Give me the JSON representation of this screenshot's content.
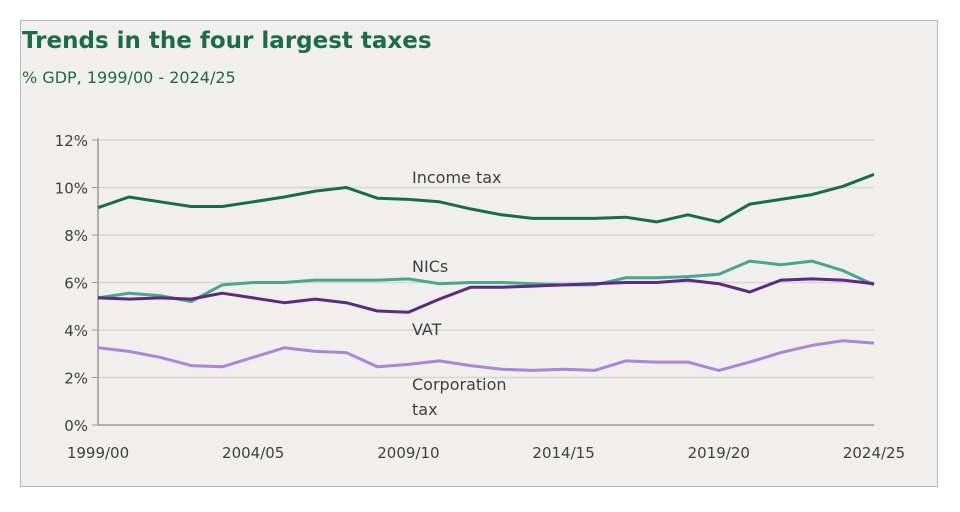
{
  "chart_data": {
    "type": "line",
    "title": "Trends in the four largest taxes",
    "subtitle": "% GDP, 1999/00 - 2024/25",
    "xlabel": "",
    "ylabel": "",
    "x": [
      "1999/00",
      "2000/01",
      "2001/02",
      "2002/03",
      "2003/04",
      "2004/05",
      "2005/06",
      "2006/07",
      "2007/08",
      "2008/09",
      "2009/10",
      "2010/11",
      "2011/12",
      "2012/13",
      "2013/14",
      "2014/15",
      "2015/16",
      "2016/17",
      "2017/18",
      "2018/19",
      "2019/20",
      "2020/21",
      "2021/22",
      "2022/23",
      "2023/24",
      "2024/25"
    ],
    "x_tick_labels": [
      "1999/00",
      "2004/05",
      "2009/10",
      "2014/15",
      "2019/20",
      "2024/25"
    ],
    "y_tick_labels": [
      "0%",
      "2%",
      "4%",
      "6%",
      "8%",
      "10%",
      "12%"
    ],
    "ylim": [
      0,
      12
    ],
    "grid": true,
    "legend": "inline labels",
    "series": [
      {
        "name": "Income tax",
        "color": "#1b6b4a",
        "values": [
          9.15,
          9.6,
          9.4,
          9.2,
          9.2,
          9.4,
          9.6,
          9.85,
          10.0,
          9.55,
          9.5,
          9.4,
          9.1,
          8.85,
          8.7,
          8.7,
          8.7,
          8.75,
          8.55,
          8.85,
          8.55,
          9.3,
          9.5,
          9.7,
          10.05,
          10.55
        ]
      },
      {
        "name": "NICs",
        "color": "#4aa58c",
        "values": [
          5.35,
          5.55,
          5.45,
          5.2,
          5.9,
          6.0,
          6.0,
          6.1,
          6.1,
          6.1,
          6.15,
          5.95,
          6.0,
          6.0,
          5.95,
          5.9,
          5.9,
          6.2,
          6.2,
          6.25,
          6.35,
          6.9,
          6.75,
          6.9,
          6.5,
          5.9
        ]
      },
      {
        "name": "VAT",
        "color": "#5c2a7e",
        "values": [
          5.35,
          5.3,
          5.35,
          5.3,
          5.55,
          5.35,
          5.15,
          5.3,
          5.15,
          4.8,
          4.75,
          5.3,
          5.8,
          5.8,
          5.85,
          5.9,
          5.95,
          6.0,
          6.0,
          6.1,
          5.95,
          5.6,
          6.1,
          6.15,
          6.1,
          5.95
        ]
      },
      {
        "name": "Corporation tax",
        "label_lines": [
          "Corporation",
          "tax"
        ],
        "color": "#a888d6",
        "values": [
          3.25,
          3.1,
          2.85,
          2.5,
          2.45,
          2.85,
          3.25,
          3.1,
          3.05,
          2.45,
          2.55,
          2.7,
          2.5,
          2.35,
          2.3,
          2.35,
          2.3,
          2.7,
          2.65,
          2.65,
          2.3,
          2.65,
          3.05,
          3.35,
          3.55,
          3.45
        ]
      }
    ]
  }
}
